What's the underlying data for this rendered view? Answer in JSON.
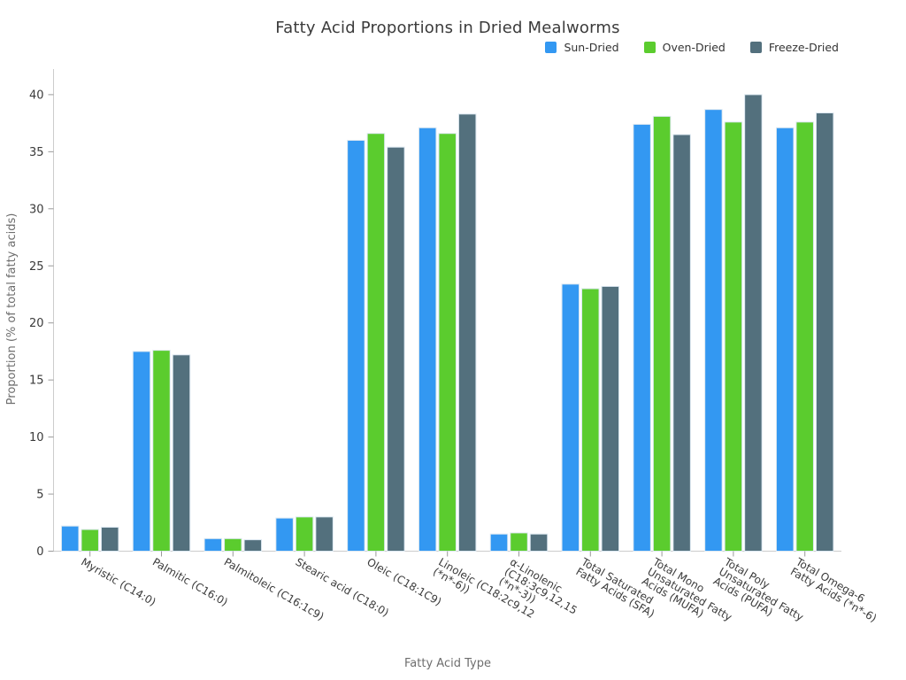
{
  "chart_data": {
    "type": "bar",
    "title": "Fatty Acid Proportions in Dried Mealworms",
    "xlabel": "Fatty Acid Type",
    "ylabel": "Proportion (% of total fatty acids)",
    "categories": [
      "Myristic (C14:0)",
      "Palmitic (C16:0)",
      "Palmitoleic (C16:1c9)",
      "Stearic acid (C18:0)",
      "Oleic (C18:1C9)",
      "Linoleic (C18:2c9,12\n(*n*-6))",
      "α-Linolenic\n(C18:3c9,12,15\n(*n*-3))",
      "Total Saturated\nFatty Acids (SFA)",
      "Total Mono\nUnsaturated Fatty\nAcids (MUFA)",
      "Total Poly\nUnsaturated Fatty\nAcids (PUFA)",
      "Total Omega-6\nFatty Acids (*n*-6)"
    ],
    "series": [
      {
        "name": "Sun-Dried",
        "color": "#3398F2",
        "values": [
          2.2,
          17.5,
          1.1,
          2.9,
          36.0,
          37.1,
          1.5,
          23.4,
          37.4,
          38.7,
          37.1
        ]
      },
      {
        "name": "Oven-Dried",
        "color": "#5BCC2E",
        "values": [
          1.9,
          17.6,
          1.1,
          3.0,
          36.6,
          36.6,
          1.6,
          23.0,
          38.1,
          37.6,
          37.6
        ]
      },
      {
        "name": "Freeze-Dried",
        "color": "#53707D",
        "values": [
          2.1,
          17.2,
          1.0,
          3.0,
          35.4,
          38.3,
          1.5,
          23.2,
          36.5,
          40.0,
          38.4
        ]
      }
    ],
    "yticks": [
      0,
      5,
      10,
      15,
      20,
      25,
      30,
      35,
      40
    ],
    "ylim": [
      0,
      42.2
    ],
    "grid": false,
    "legend_position": "top-right",
    "colors": {
      "axis_line": "#cccccc",
      "tick_mark": "#9a9a9a",
      "tick_text": "#3a3a3a",
      "axis_title_text": "#6e6e6e",
      "title_text": "#3b3b3b",
      "bar_edge": "#dde8f1",
      "background": "#ffffff"
    }
  }
}
